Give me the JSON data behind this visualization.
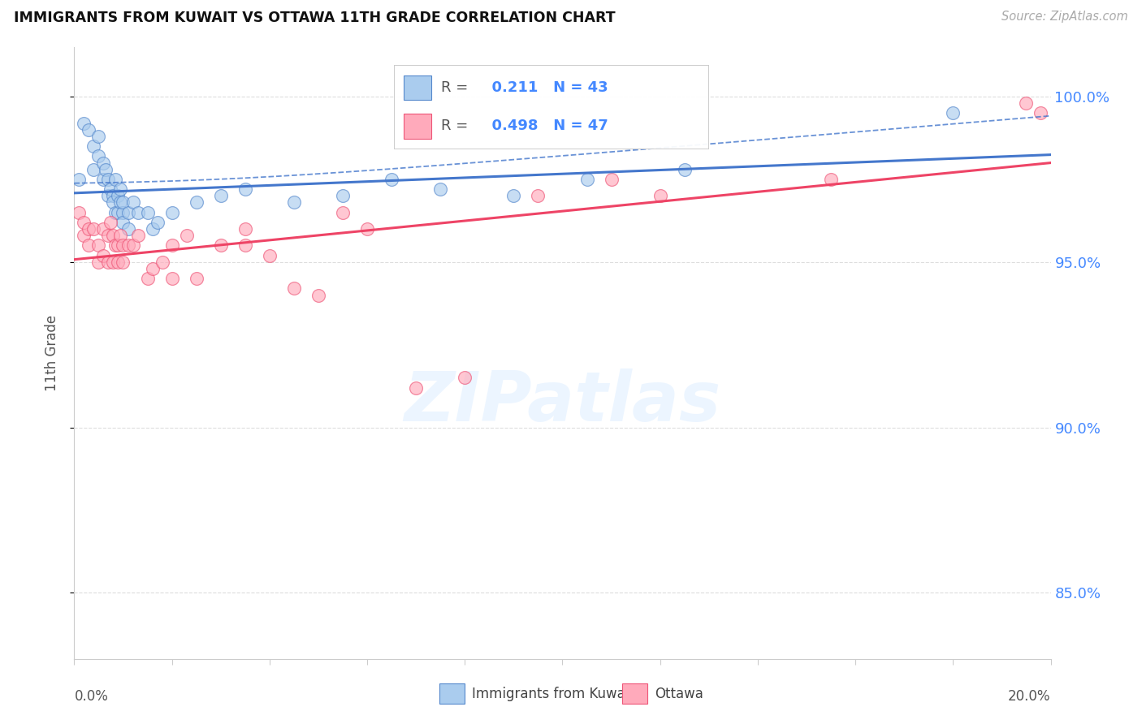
{
  "title": "IMMIGRANTS FROM KUWAIT VS OTTAWA 11TH GRADE CORRELATION CHART",
  "source": "Source: ZipAtlas.com",
  "ylabel": "11th Grade",
  "r_blue": 0.211,
  "n_blue": 43,
  "r_pink": 0.498,
  "n_pink": 47,
  "blue_fill": "#aaccee",
  "blue_edge": "#5588cc",
  "pink_fill": "#ffaabb",
  "pink_edge": "#ee5577",
  "line_blue_color": "#4477cc",
  "line_pink_color": "#ee4466",
  "xmin": 0.0,
  "xmax": 20.0,
  "ymin": 83.0,
  "ymax": 101.5,
  "ytick_vals": [
    85.0,
    90.0,
    95.0,
    100.0
  ],
  "ytick_labels": [
    "85.0%",
    "90.0%",
    "95.0%",
    "100.0%"
  ],
  "blue_x": [
    0.1,
    0.2,
    0.3,
    0.4,
    0.4,
    0.5,
    0.5,
    0.6,
    0.6,
    0.65,
    0.7,
    0.7,
    0.75,
    0.8,
    0.8,
    0.85,
    0.85,
    0.9,
    0.9,
    0.95,
    0.95,
    1.0,
    1.0,
    1.0,
    1.1,
    1.1,
    1.2,
    1.3,
    1.5,
    1.6,
    1.7,
    2.0,
    2.5,
    3.0,
    3.5,
    4.5,
    5.5,
    6.5,
    7.5,
    9.0,
    10.5,
    12.5,
    18.0
  ],
  "blue_y": [
    97.5,
    99.2,
    99.0,
    98.5,
    97.8,
    98.8,
    98.2,
    98.0,
    97.5,
    97.8,
    97.5,
    97.0,
    97.2,
    97.0,
    96.8,
    97.5,
    96.5,
    97.0,
    96.5,
    97.2,
    96.8,
    96.5,
    96.8,
    96.2,
    96.5,
    96.0,
    96.8,
    96.5,
    96.5,
    96.0,
    96.2,
    96.5,
    96.8,
    97.0,
    97.2,
    96.8,
    97.0,
    97.5,
    97.2,
    97.0,
    97.5,
    97.8,
    99.5
  ],
  "pink_x": [
    0.1,
    0.2,
    0.2,
    0.3,
    0.3,
    0.4,
    0.5,
    0.5,
    0.6,
    0.6,
    0.7,
    0.7,
    0.75,
    0.8,
    0.8,
    0.85,
    0.9,
    0.9,
    0.95,
    1.0,
    1.0,
    1.1,
    1.2,
    1.3,
    1.5,
    1.6,
    1.8,
    2.0,
    2.0,
    2.3,
    2.5,
    3.0,
    3.5,
    3.5,
    4.0,
    4.5,
    5.0,
    5.5,
    6.0,
    7.0,
    8.0,
    9.5,
    11.0,
    12.0,
    15.5,
    19.5,
    19.8
  ],
  "pink_y": [
    96.5,
    96.2,
    95.8,
    96.0,
    95.5,
    96.0,
    95.5,
    95.0,
    96.0,
    95.2,
    95.8,
    95.0,
    96.2,
    95.8,
    95.0,
    95.5,
    95.5,
    95.0,
    95.8,
    95.5,
    95.0,
    95.5,
    95.5,
    95.8,
    94.5,
    94.8,
    95.0,
    95.5,
    94.5,
    95.8,
    94.5,
    95.5,
    96.0,
    95.5,
    95.2,
    94.2,
    94.0,
    96.5,
    96.0,
    91.2,
    91.5,
    97.0,
    97.5,
    97.0,
    97.5,
    99.8,
    99.5
  ]
}
